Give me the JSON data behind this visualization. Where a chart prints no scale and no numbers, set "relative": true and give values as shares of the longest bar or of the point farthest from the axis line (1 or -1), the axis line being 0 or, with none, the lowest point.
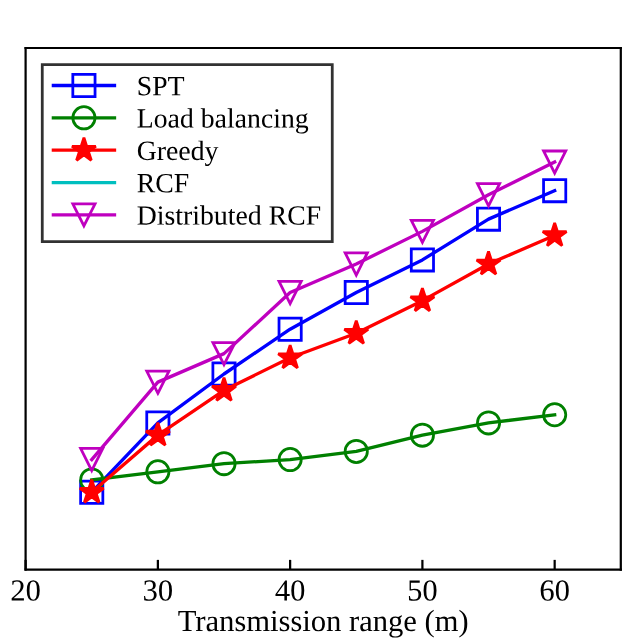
{
  "chart_data": {
    "type": "line",
    "xlabel": "Transmission range (m)",
    "relative": true,
    "x": [
      25,
      30,
      35,
      40,
      45,
      50,
      55,
      60
    ],
    "xlim": [
      20,
      65
    ],
    "xticks": [
      20,
      30,
      40,
      50,
      60
    ],
    "legend": "top left",
    "grid": false,
    "line_style": "solid",
    "series": [
      {
        "name": "SPT",
        "color": "#0000ff",
        "marker": "square",
        "values": [
          0.19,
          0.36,
          0.48,
          0.59,
          0.68,
          0.76,
          0.86,
          0.93
        ]
      },
      {
        "name": "Load balancing",
        "color": "#008000",
        "marker": "circle",
        "values": [
          0.22,
          0.24,
          0.26,
          0.27,
          0.29,
          0.33,
          0.36,
          0.38
        ]
      },
      {
        "name": "Greedy",
        "color": "#ff0000",
        "marker": "star",
        "values": [
          0.19,
          0.33,
          0.44,
          0.52,
          0.58,
          0.66,
          0.75,
          0.82
        ]
      },
      {
        "name": "RCF",
        "color": "#00bfbf",
        "marker": "none",
        "values": [
          null,
          null,
          null,
          null,
          null,
          null,
          null,
          null
        ]
      },
      {
        "name": "Distributed RCF",
        "color": "#bf00bf",
        "marker": "triangle",
        "values": [
          0.27,
          0.46,
          0.53,
          0.68,
          0.75,
          0.83,
          0.92,
          1
        ]
      }
    ]
  }
}
